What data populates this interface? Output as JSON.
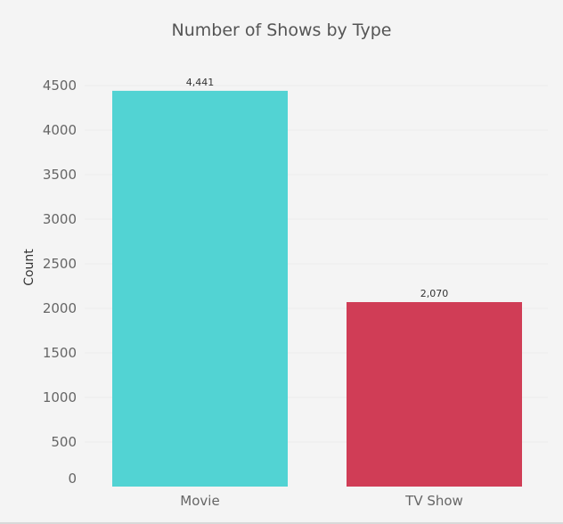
{
  "chart_data": {
    "type": "bar",
    "title": "Number of Shows by Type",
    "xlabel": "",
    "ylabel": "Count",
    "categories": [
      "Movie",
      "TV Show"
    ],
    "values": [
      4441,
      2070
    ],
    "data_labels": [
      "4,441",
      "2,070"
    ],
    "bar_colors": [
      "#52d3d3",
      "#d03d56"
    ],
    "yticks": [
      0,
      500,
      1000,
      1500,
      2000,
      2500,
      3000,
      3500,
      4000,
      4500
    ],
    "ytick_labels": [
      "0",
      "500",
      "1000",
      "1500",
      "2000",
      "2500",
      "3000",
      "3500",
      "4000",
      "4500"
    ],
    "ylim": [
      0,
      4500
    ],
    "grid": true,
    "legend": "none"
  }
}
